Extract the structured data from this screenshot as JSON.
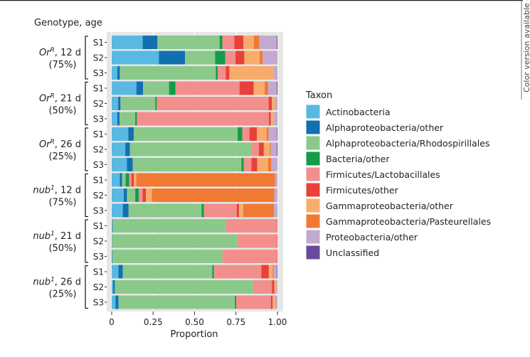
{
  "side_note": "Color version available online",
  "chart_data": {
    "type": "bar",
    "orientation": "horizontal-stacked",
    "y_title": "Genotype, age",
    "xlabel": "Proportion",
    "xlim": [
      0,
      1
    ],
    "x_ticks": [
      "0",
      "0.25",
      "0.50",
      "0.75",
      "1.00"
    ],
    "x_tick_values": [
      0,
      0.25,
      0.5,
      0.75,
      1
    ],
    "legend": {
      "title": "Taxon",
      "placement": "right"
    },
    "taxa": [
      {
        "name": "Actinobacteria",
        "color": "#5ab9e2"
      },
      {
        "name": "Alphaproteobacteria/other",
        "color": "#1170b0"
      },
      {
        "name": "Alphaproteobacteria/Rhodospirillales",
        "color": "#8bc98a"
      },
      {
        "name": "Bacteria/other",
        "color": "#159b4a"
      },
      {
        "name": "Firmicutes/Lactobacillales",
        "color": "#f28f8c"
      },
      {
        "name": "Firmicutes/other",
        "color": "#e8413a"
      },
      {
        "name": "Gammaproteobacteria/other",
        "color": "#f8ac6c"
      },
      {
        "name": "Gammaproteobacteria/Pasteurellales",
        "color": "#f07a34"
      },
      {
        "name": "Proteobacteria/other",
        "color": "#c3a9cf"
      },
      {
        "name": "Unclassified",
        "color": "#6a4a98"
      }
    ],
    "groups": [
      {
        "genotype": "Or",
        "sup": "R",
        "age": ", 12 d",
        "pct": "(75%)",
        "samples": [
          {
            "label": "S1",
            "values": [
              0.187,
              0.089,
              0.375,
              0.017,
              0.072,
              0.054,
              0.063,
              0.033,
              0.106,
              0.004
            ]
          },
          {
            "label": "S2",
            "values": [
              0.285,
              0.157,
              0.182,
              0.061,
              0.062,
              0.053,
              0.093,
              0.017,
              0.09,
              0
            ]
          },
          {
            "label": "S3",
            "values": [
              0.034,
              0.015,
              0.579,
              0.012,
              0.048,
              0.022,
              0.269,
              0,
              0.021,
              0
            ]
          }
        ]
      },
      {
        "genotype": "Or",
        "sup": "R",
        "age": ", 21 d",
        "pct": "(50%)",
        "samples": [
          {
            "label": "S1",
            "values": [
              0.149,
              0.04,
              0.157,
              0.039,
              0.386,
              0.086,
              0.066,
              0.021,
              0.052,
              0.004
            ]
          },
          {
            "label": "S2",
            "values": [
              0.039,
              0.014,
              0.21,
              0.009,
              0.675,
              0.019,
              0.02,
              0,
              0.014,
              0
            ]
          },
          {
            "label": "S3",
            "values": [
              0.034,
              0.013,
              0.095,
              0.01,
              0.796,
              0.012,
              0.02,
              0,
              0.02,
              0
            ]
          }
        ]
      },
      {
        "genotype": "Or",
        "sup": "R",
        "age": ", 26 d",
        "pct": "(25%)",
        "samples": [
          {
            "label": "S1",
            "values": [
              0.1,
              0.033,
              0.627,
              0.028,
              0.043,
              0.045,
              0.058,
              0.012,
              0.051,
              0.003
            ]
          },
          {
            "label": "S2",
            "values": [
              0.082,
              0.028,
              0.733,
              0,
              0.045,
              0.03,
              0.036,
              0.006,
              0.036,
              0.004
            ]
          },
          {
            "label": "S3",
            "values": [
              0.092,
              0.035,
              0.656,
              0.014,
              0.046,
              0.035,
              0.065,
              0.02,
              0.037,
              0
            ]
          }
        ]
      },
      {
        "genotype": "nub",
        "sup": "1",
        "age": ", 12 d",
        "pct": "(75%)",
        "samples": [
          {
            "label": "S1",
            "values": [
              0.049,
              0.014,
              0.021,
              0.022,
              0.014,
              0.014,
              0.015,
              0.837,
              0.014,
              0
            ]
          },
          {
            "label": "S2",
            "values": [
              0.073,
              0.019,
              0.05,
              0.021,
              0.024,
              0.019,
              0.036,
              0.739,
              0.019,
              0
            ]
          },
          {
            "label": "S3",
            "values": [
              0.067,
              0.035,
              0.44,
              0.015,
              0.197,
              0.014,
              0.025,
              0.186,
              0.021,
              0
            ]
          }
        ]
      },
      {
        "genotype": "nub",
        "sup": "1",
        "age": ", 21 d",
        "pct": "(50%)",
        "samples": [
          {
            "label": "S1",
            "values": [
              0.003,
              0.003,
              0.684,
              0,
              0.308,
              0.002,
              0,
              0,
              0,
              0
            ]
          },
          {
            "label": "S2",
            "values": [
              0.001,
              0.002,
              0.757,
              0,
              0.237,
              0.003,
              0,
              0,
              0,
              0
            ]
          },
          {
            "label": "S3",
            "values": [
              0.002,
              0.003,
              0.663,
              0,
              0.329,
              0.003,
              0,
              0,
              0,
              0
            ]
          }
        ]
      },
      {
        "genotype": "nub",
        "sup": "1",
        "age": ", 26 d",
        "pct": "(25%)",
        "samples": [
          {
            "label": "S1",
            "values": [
              0.041,
              0.026,
              0.54,
              0.01,
              0.286,
              0.045,
              0.023,
              0.006,
              0.02,
              0.003
            ]
          },
          {
            "label": "S2",
            "values": [
              0.009,
              0.01,
              0.834,
              0,
              0.114,
              0.014,
              0.013,
              0,
              0.006,
              0
            ]
          },
          {
            "label": "S3",
            "values": [
              0.023,
              0.018,
              0.702,
              0.008,
              0.21,
              0.01,
              0.015,
              0,
              0.014,
              0
            ]
          }
        ]
      }
    ]
  }
}
